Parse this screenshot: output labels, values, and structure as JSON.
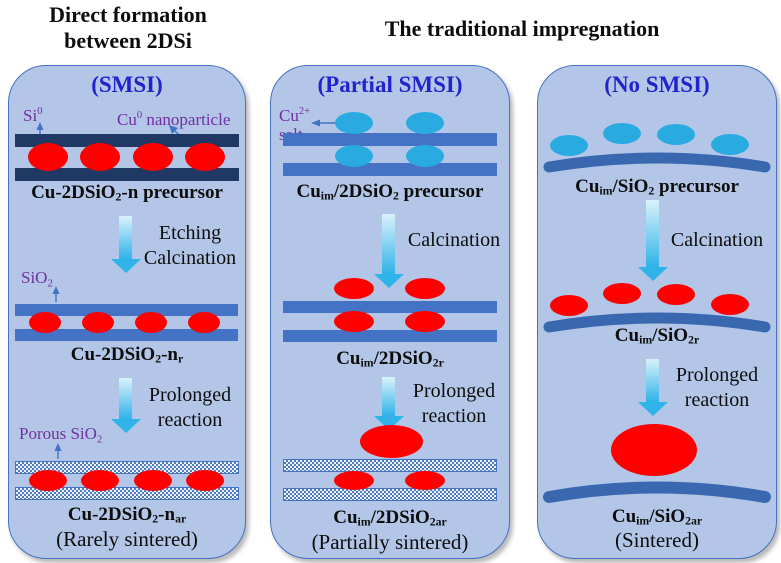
{
  "figure": {
    "header_left_line1": "Direct formation",
    "header_left_line2": "between 2DSi",
    "header_right": "The traditional impregnation"
  },
  "colors": {
    "panel_bg": "#b3c6e7",
    "panel_border": "#4472c4",
    "dark_bar": "#1f3864",
    "blue_bar": "#4472c4",
    "arc_blue": "#3a68b0",
    "red_particle": "#fe0000",
    "cyan_particle": "#29abe2",
    "title_blue": "#2323cd",
    "label_purple": "#7030a0",
    "arrow_light": "#d9f2fb",
    "arrow_dark": "#2fb3e8",
    "ann_arrow": "#4472c4",
    "hatch_dot": "#4f7cc3",
    "hatch_bg": "#edf2fb",
    "text_black": "#0d0d0d"
  },
  "panels": [
    {
      "title": "(SMSI)",
      "annotations": {
        "si": "Si^0^",
        "cu": "Cu^0^ nanoparticle",
        "sio2": "SiO~2~",
        "porous": "Porous SiO~2~"
      },
      "stages": [
        {
          "label": "Cu-2DSiO~2~-n precursor"
        },
        {
          "label": "Cu-2DSiO~2~-n~r~"
        },
        {
          "label": "Cu-2DSiO~2~-n~ar~"
        }
      ],
      "arrow1": [
        "Etching",
        "Calcination"
      ],
      "arrow2": [
        "Prolonged",
        "reaction"
      ],
      "note": "(Rarely sintered)"
    },
    {
      "title": "(Partial SMSI)",
      "annotations": {
        "salt_line1": "Cu^2+^",
        "salt_line2": "salt"
      },
      "stages": [
        {
          "label": "Cu~im~/2DSiO~2~ precursor"
        },
        {
          "label": "Cu~im~/2DSiO~2r~"
        },
        {
          "label": "Cu~im~/2DSiO~2ar~"
        }
      ],
      "arrow1": [
        "Calcination"
      ],
      "arrow2": [
        "Prolonged",
        "reaction"
      ],
      "note": "(Partially sintered)"
    },
    {
      "title": "(No SMSI)",
      "stages": [
        {
          "label": "Cu~im~/SiO~2~ precursor"
        },
        {
          "label": "Cu~im~/SiO~2r~"
        },
        {
          "label": "Cu~im~/SiO~2ar~"
        }
      ],
      "arrow1": [
        "Calcination"
      ],
      "arrow2": [
        "Prolonged",
        "reaction"
      ],
      "note": "(Sintered)"
    }
  ]
}
